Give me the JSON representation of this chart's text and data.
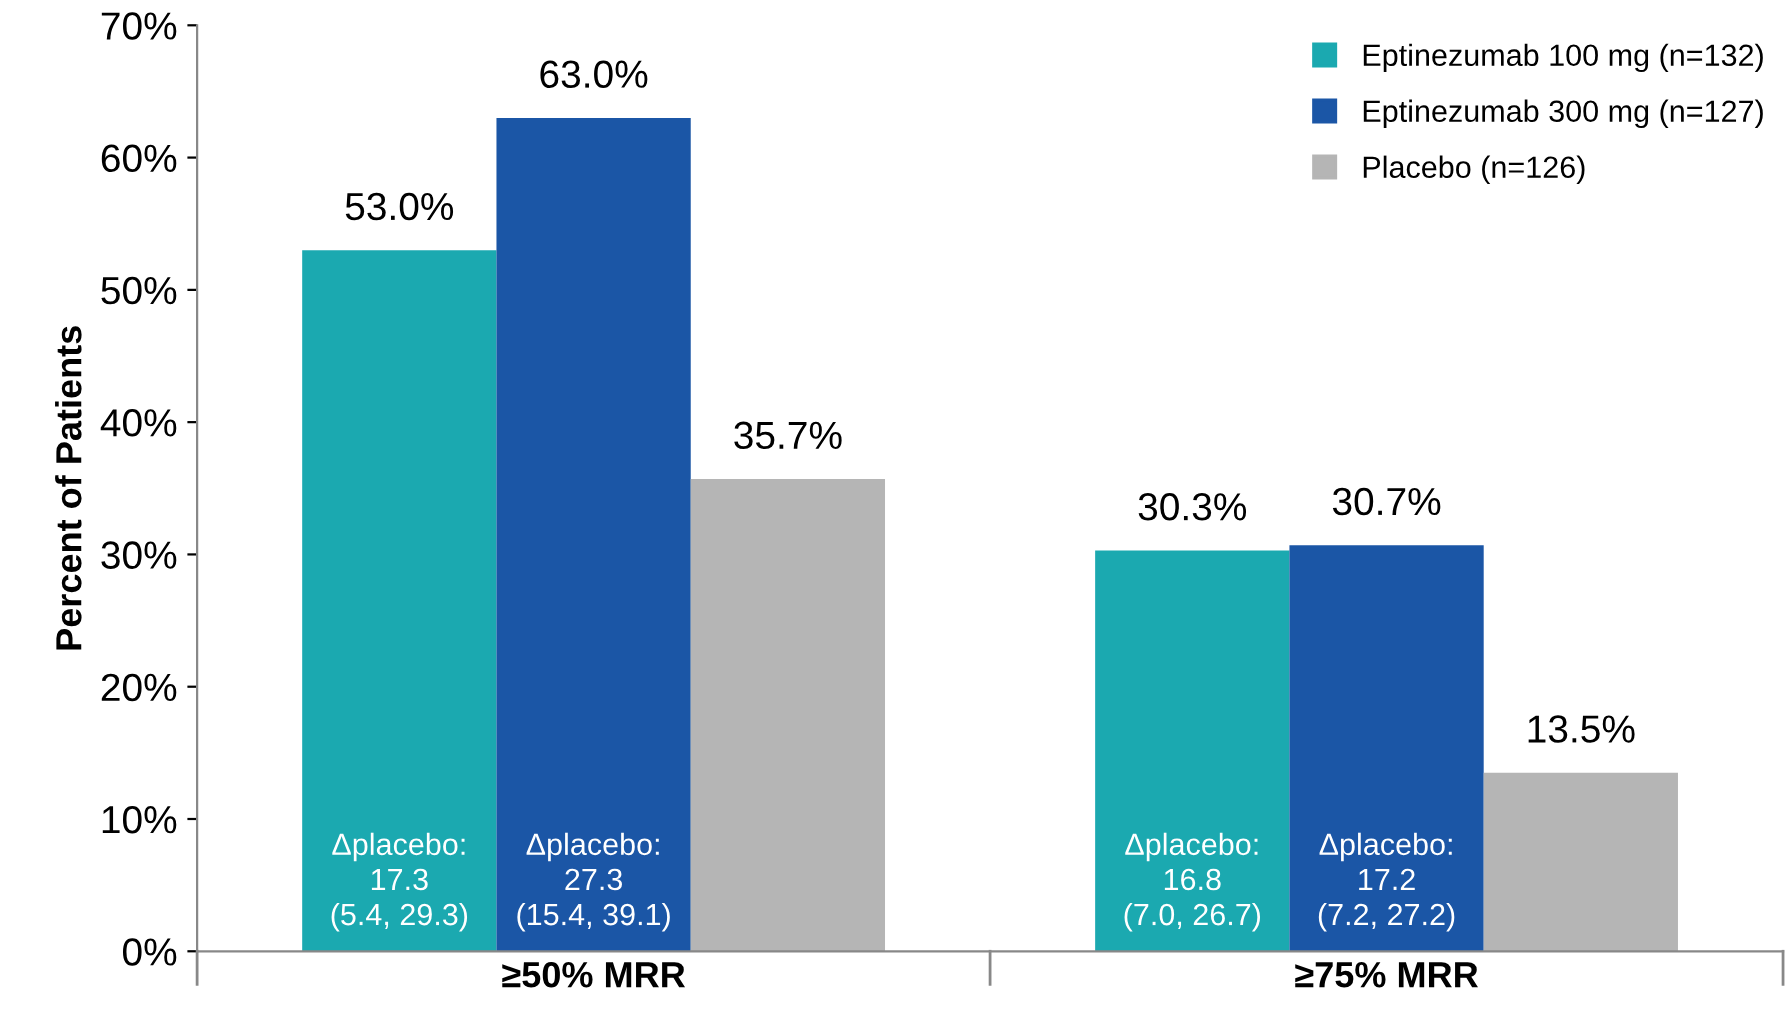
{
  "chart_data": {
    "type": "bar",
    "ylabel": "Percent of Patients",
    "categories": [
      "≥50% MRR",
      "≥75% MRR"
    ],
    "series": [
      {
        "name": "Eptinezumab 100 mg (n=132)",
        "color": "#1ba9b0",
        "values": [
          53.0,
          30.3
        ],
        "value_labels": [
          "53.0%",
          "30.3%"
        ]
      },
      {
        "name": "Eptinezumab 300 mg (n=127)",
        "color": "#1b56a6",
        "values": [
          63.0,
          30.7
        ],
        "value_labels": [
          "63.0%",
          "30.7%"
        ]
      },
      {
        "name": "Placebo (n=126)",
        "color": "#b5b5b5",
        "values": [
          35.7,
          13.5
        ],
        "value_labels": [
          "35.7%",
          "13.5%"
        ]
      }
    ],
    "ylim": [
      0,
      70
    ],
    "yticks": [
      {
        "value": 0,
        "label": "0%"
      },
      {
        "value": 10,
        "label": "10%"
      },
      {
        "value": 20,
        "label": "20%"
      },
      {
        "value": 30,
        "label": "30%"
      },
      {
        "value": 40,
        "label": "40%"
      },
      {
        "value": 50,
        "label": "50%"
      },
      {
        "value": 60,
        "label": "60%"
      },
      {
        "value": 70,
        "label": "70%"
      }
    ],
    "annotations": [
      "Δplacebo:\n17.3\n(5.4, 29.3)",
      "Δplacebo:\n27.3\n(15.4, 39.1)",
      "Δplacebo:\n16.8\n(7.0, 26.7)",
      "Δplacebo:\n17.2\n(7.2, 27.2)"
    ],
    "legend": "top right",
    "grid": false
  }
}
